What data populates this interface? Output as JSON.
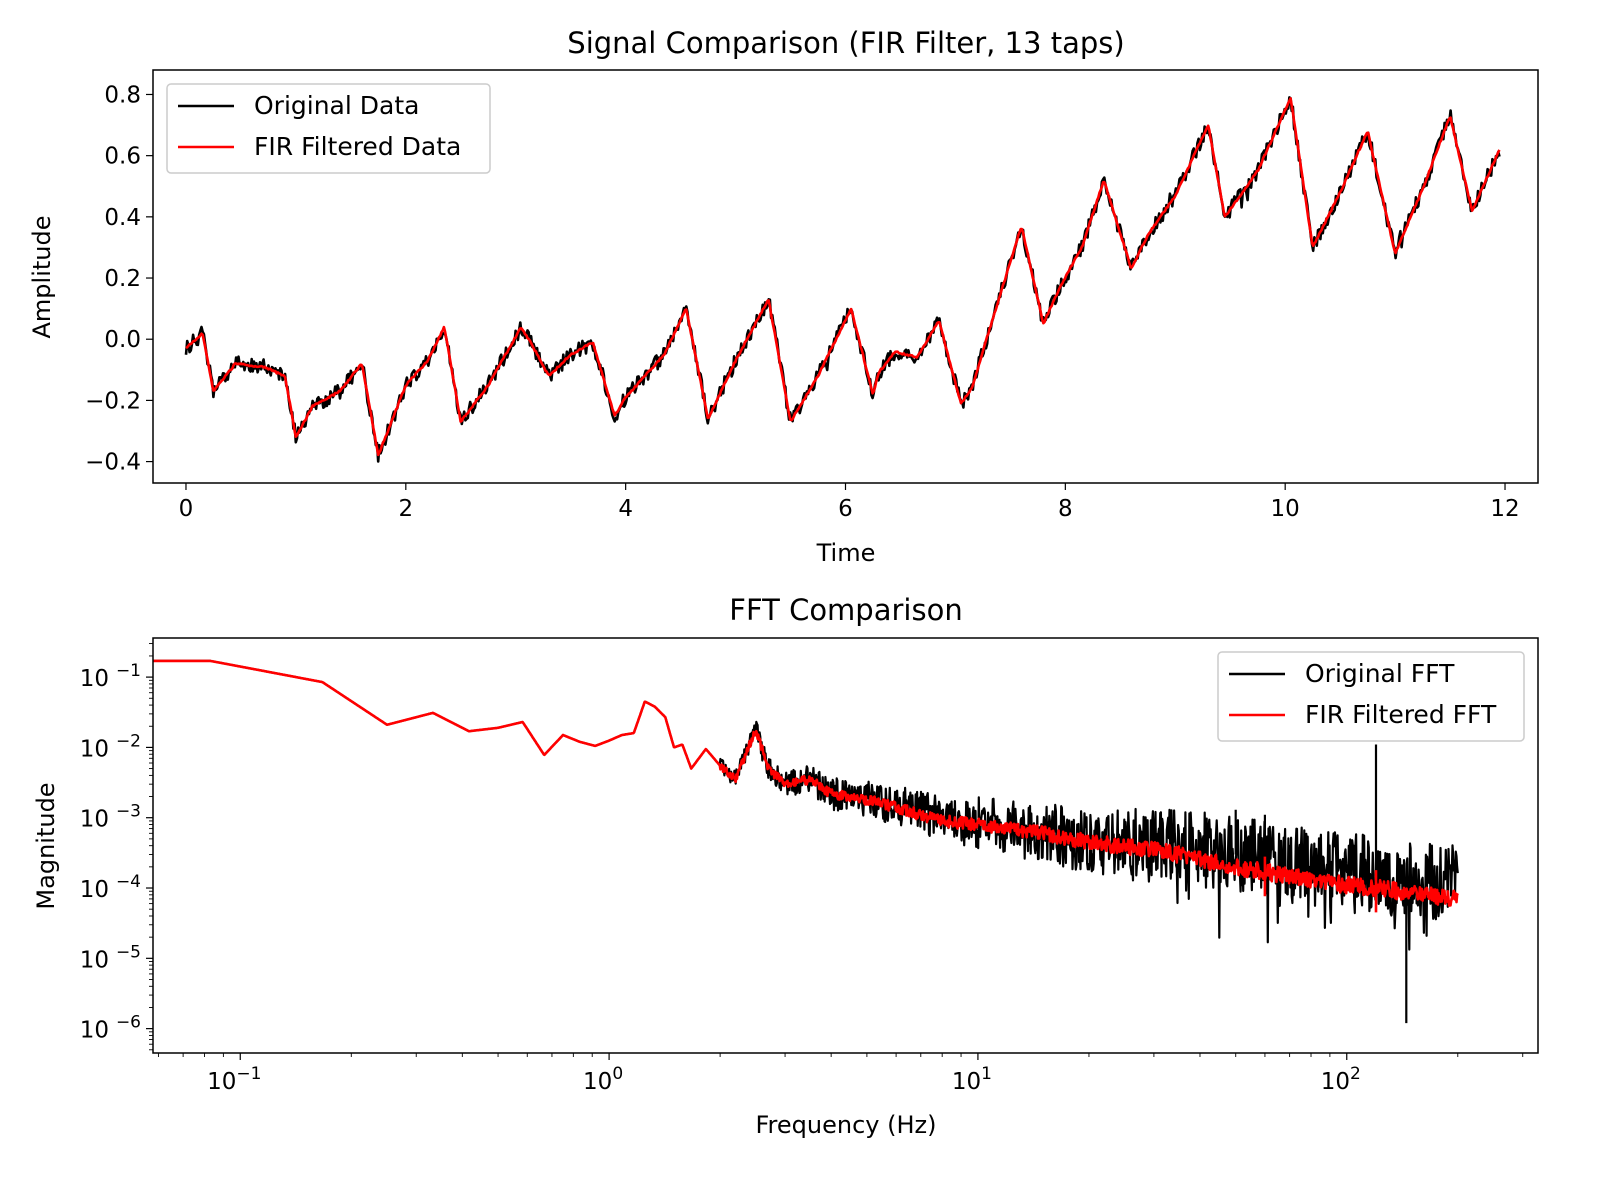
{
  "chart_data": [
    {
      "type": "line",
      "title": "Signal Comparison (FIR Filter, 13 taps)",
      "xlabel": "Time",
      "ylabel": "Amplitude",
      "xlim": [
        -0.3,
        12.3
      ],
      "ylim": [
        -0.47,
        0.88
      ],
      "xticks": [
        0,
        2,
        4,
        6,
        8,
        10,
        12
      ],
      "yticks": [
        -0.4,
        -0.2,
        0.0,
        0.2,
        0.4,
        0.6,
        0.8
      ],
      "xtick_labels": [
        "0",
        "2",
        "4",
        "6",
        "8",
        "10",
        "12"
      ],
      "ytick_labels": [
        "−0.4",
        "−0.2",
        "0.0",
        "0.2",
        "0.4",
        "0.6",
        "0.8"
      ],
      "legend": "top-left",
      "grid": false,
      "series": [
        {
          "name": "Original Data",
          "color": "#000000",
          "noise_amplitude": 0.025
        },
        {
          "name": "FIR Filtered Data",
          "color": "#ff0000"
        }
      ],
      "x": [
        0,
        0.15,
        0.25,
        0.45,
        0.7,
        0.9,
        1.0,
        1.15,
        1.4,
        1.6,
        1.75,
        2.0,
        2.2,
        2.35,
        2.5,
        2.75,
        3.05,
        3.15,
        3.3,
        3.5,
        3.7,
        3.9,
        4.0,
        4.35,
        4.55,
        4.75,
        5.0,
        5.3,
        5.5,
        5.75,
        6.05,
        6.25,
        6.3,
        6.45,
        6.65,
        6.85,
        7.05,
        7.15,
        7.3,
        7.6,
        7.8,
        7.95,
        8.15,
        8.35,
        8.6,
        8.75,
        9.0,
        9.3,
        9.45,
        9.75,
        10.05,
        10.25,
        10.5,
        10.75,
        11.0,
        11.25,
        11.5,
        11.7,
        11.95
      ],
      "y": [
        -0.03,
        0.02,
        -0.17,
        -0.08,
        -0.09,
        -0.12,
        -0.32,
        -0.22,
        -0.17,
        -0.08,
        -0.38,
        -0.15,
        -0.07,
        0.04,
        -0.27,
        -0.15,
        0.04,
        -0.02,
        -0.12,
        -0.05,
        -0.01,
        -0.25,
        -0.19,
        -0.05,
        0.1,
        -0.26,
        -0.07,
        0.13,
        -0.27,
        -0.12,
        0.1,
        -0.18,
        -0.11,
        -0.04,
        -0.06,
        0.06,
        -0.21,
        -0.16,
        0.02,
        0.37,
        0.05,
        0.17,
        0.3,
        0.52,
        0.23,
        0.34,
        0.47,
        0.7,
        0.4,
        0.55,
        0.79,
        0.3,
        0.48,
        0.68,
        0.28,
        0.49,
        0.73,
        0.42,
        0.62
      ]
    },
    {
      "type": "line",
      "title": "FFT Comparison",
      "xlabel": "Frequency (Hz)",
      "ylabel": "Magnitude",
      "xscale": "log",
      "yscale": "log",
      "xlim": [
        0.058,
        330
      ],
      "ylim": [
        4.5e-07,
        0.36
      ],
      "xticks": [
        0.1,
        1,
        10,
        100
      ],
      "yticks": [
        1e-06,
        1e-05,
        0.0001,
        0.001,
        0.01,
        0.1
      ],
      "xtick_labels": [
        {
          "base": "10",
          "exp": "−1"
        },
        {
          "base": "10",
          "exp": "0"
        },
        {
          "base": "10",
          "exp": "1"
        },
        {
          "base": "10",
          "exp": "2"
        }
      ],
      "ytick_labels": [
        {
          "base": "10",
          "exp": "−6"
        },
        {
          "base": "10",
          "exp": "−5"
        },
        {
          "base": "10",
          "exp": "−4"
        },
        {
          "base": "10",
          "exp": "−3"
        },
        {
          "base": "10",
          "exp": "−2"
        },
        {
          "base": "10",
          "exp": "−1"
        }
      ],
      "legend": "top-right",
      "grid": false,
      "series": [
        {
          "name": "Original FFT",
          "color": "#000000"
        },
        {
          "name": "FIR Filtered FFT",
          "color": "#ff0000"
        }
      ],
      "x": [
        0.05,
        0.083,
        0.167,
        0.25,
        0.333,
        0.417,
        0.5,
        0.583,
        0.667,
        0.75,
        0.833,
        0.917,
        1.0,
        1.083,
        1.167,
        1.25,
        1.33,
        1.42,
        1.5,
        1.58,
        1.67,
        1.83,
        2.0,
        2.2,
        2.5,
        2.7,
        3.0,
        3.5,
        4.0,
        5.0,
        6.0,
        8.0,
        10,
        15,
        20,
        30,
        50,
        60,
        80,
        100,
        120,
        150,
        200
      ],
      "original": [
        0.17,
        0.17,
        0.085,
        0.021,
        0.031,
        0.017,
        0.019,
        0.023,
        0.0078,
        0.015,
        0.012,
        0.0105,
        0.0125,
        0.015,
        0.016,
        0.045,
        0.038,
        0.027,
        0.01,
        0.011,
        0.005,
        0.0095,
        0.0055,
        0.0035,
        0.018,
        0.005,
        0.003,
        0.0035,
        0.0022,
        0.0018,
        0.0015,
        0.001,
        0.00085,
        0.0006,
        0.00045,
        0.0004,
        0.0003,
        0.00025,
        0.0002,
        0.00018,
        0.00015,
        0.00013,
        0.00012
      ],
      "filtered": [
        0.17,
        0.17,
        0.085,
        0.021,
        0.031,
        0.017,
        0.019,
        0.023,
        0.0078,
        0.015,
        0.012,
        0.0105,
        0.0125,
        0.015,
        0.016,
        0.045,
        0.038,
        0.027,
        0.01,
        0.011,
        0.005,
        0.0095,
        0.0055,
        0.0035,
        0.018,
        0.005,
        0.003,
        0.0035,
        0.0022,
        0.0018,
        0.0014,
        0.0009,
        0.0008,
        0.0006,
        0.00045,
        0.00035,
        0.0002,
        0.00017,
        0.00013,
        0.00011,
        0.0001,
        8.5e-05,
        7e-05
      ],
      "spikes_original": [
        {
          "x": 50,
          "y": 0.0013
        },
        {
          "x": 60,
          "y": 0.0011
        },
        {
          "x": 120,
          "y": 0.011
        },
        {
          "x": 145,
          "y": 1.2e-06
        }
      ],
      "spikes_filtered": [
        {
          "x": 60,
          "y": 0.00028
        },
        {
          "x": 120,
          "y": 0.00018
        }
      ]
    }
  ]
}
